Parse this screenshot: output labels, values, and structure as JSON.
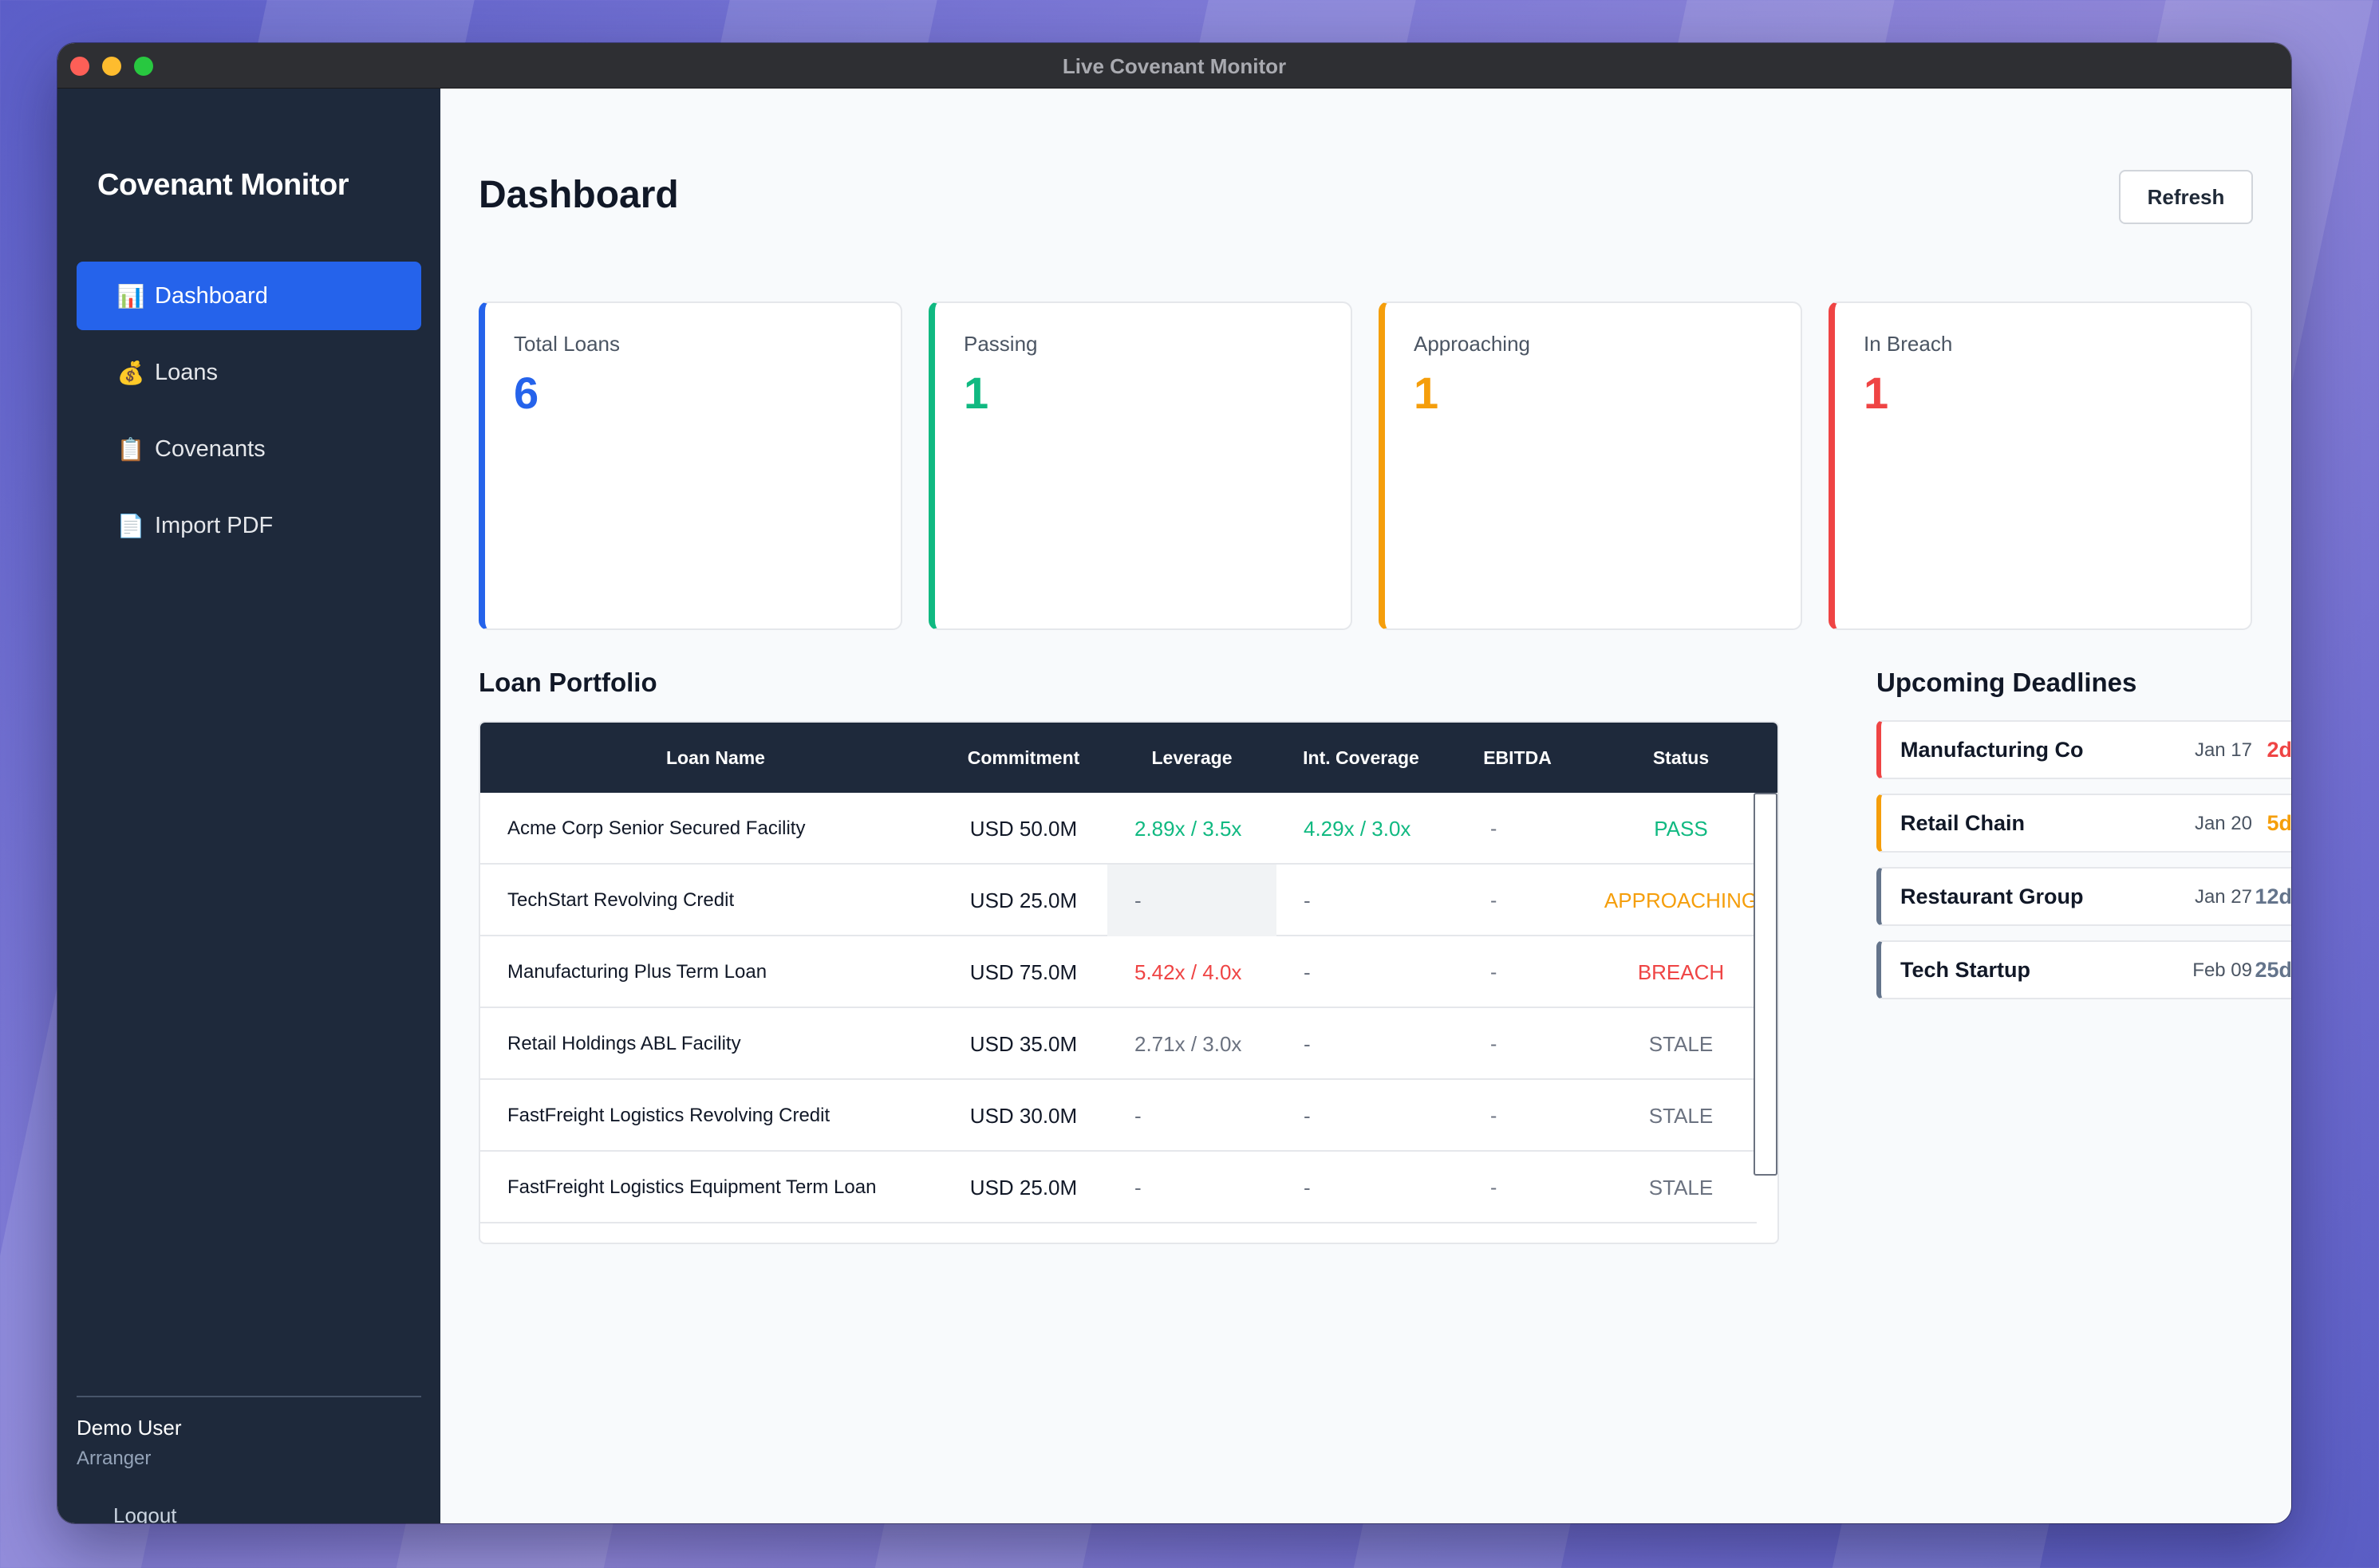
{
  "window": {
    "title": "Live Covenant Monitor"
  },
  "sidebar": {
    "brand": "Covenant Monitor",
    "items": [
      {
        "label": "Dashboard",
        "icon": "📊",
        "icon_name": "bar-chart-icon",
        "active": true
      },
      {
        "label": "Loans",
        "icon": "💰",
        "icon_name": "money-bag-icon",
        "active": false
      },
      {
        "label": "Covenants",
        "icon": "📋",
        "icon_name": "clipboard-icon",
        "active": false
      },
      {
        "label": "Import PDF",
        "icon": "📄",
        "icon_name": "document-icon",
        "active": false
      }
    ],
    "user": {
      "name": "Demo User",
      "role": "Arranger"
    },
    "logout_label": "Logout"
  },
  "main": {
    "title": "Dashboard",
    "refresh_label": "Refresh",
    "stats": [
      {
        "label": "Total Loans",
        "value": "6",
        "color": "#2563eb"
      },
      {
        "label": "Passing",
        "value": "1",
        "color": "#10b981"
      },
      {
        "label": "Approaching",
        "value": "1",
        "color": "#f59e0b"
      },
      {
        "label": "In Breach",
        "value": "1",
        "color": "#ef4444"
      }
    ],
    "portfolio": {
      "title": "Loan Portfolio",
      "columns": [
        "Loan Name",
        "Commitment",
        "Leverage",
        "Int. Coverage",
        "EBITDA",
        "Status"
      ],
      "rows": [
        {
          "name": "Acme Corp Senior Secured Facility",
          "commitment": "USD 50.0M",
          "leverage": "2.89x / 3.5x",
          "leverage_color": "#10b981",
          "coverage": "4.29x / 3.0x",
          "coverage_color": "#10b981",
          "ebitda": "-",
          "status": "PASS",
          "status_color": "#10b981"
        },
        {
          "name": "TechStart Revolving Credit",
          "commitment": "USD 25.0M",
          "leverage": "-",
          "leverage_color": "#6b7280",
          "coverage": "-",
          "coverage_color": "#6b7280",
          "ebitda": "-",
          "status": "APPROACHING",
          "status_color": "#f59e0b"
        },
        {
          "name": "Manufacturing Plus Term Loan",
          "commitment": "USD 75.0M",
          "leverage": "5.42x / 4.0x",
          "leverage_color": "#ef4444",
          "coverage": "-",
          "coverage_color": "#6b7280",
          "ebitda": "-",
          "status": "BREACH",
          "status_color": "#ef4444"
        },
        {
          "name": "Retail Holdings ABL Facility",
          "commitment": "USD 35.0M",
          "leverage": "2.71x / 3.0x",
          "leverage_color": "#6b7280",
          "coverage": "-",
          "coverage_color": "#6b7280",
          "ebitda": "-",
          "status": "STALE",
          "status_color": "#6b7280"
        },
        {
          "name": "FastFreight Logistics Revolving Credit",
          "commitment": "USD 30.0M",
          "leverage": "-",
          "leverage_color": "#6b7280",
          "coverage": "-",
          "coverage_color": "#6b7280",
          "ebitda": "-",
          "status": "STALE",
          "status_color": "#6b7280"
        },
        {
          "name": "FastFreight Logistics Equipment Term Loan",
          "commitment": "USD 25.0M",
          "leverage": "-",
          "leverage_color": "#6b7280",
          "coverage": "-",
          "coverage_color": "#6b7280",
          "ebitda": "-",
          "status": "STALE",
          "status_color": "#6b7280"
        }
      ]
    },
    "deadlines": {
      "title": "Upcoming Deadlines",
      "items": [
        {
          "name": "Manufacturing Co",
          "date": "Jan 17",
          "days": "2d",
          "color": "#ef4444"
        },
        {
          "name": "Retail Chain",
          "date": "Jan 20",
          "days": "5d",
          "color": "#f59e0b"
        },
        {
          "name": "Restaurant Group",
          "date": "Jan 27",
          "days": "12d",
          "color": "#64748b"
        },
        {
          "name": "Tech Startup",
          "date": "Feb 09",
          "days": "25d",
          "color": "#64748b"
        }
      ]
    }
  }
}
